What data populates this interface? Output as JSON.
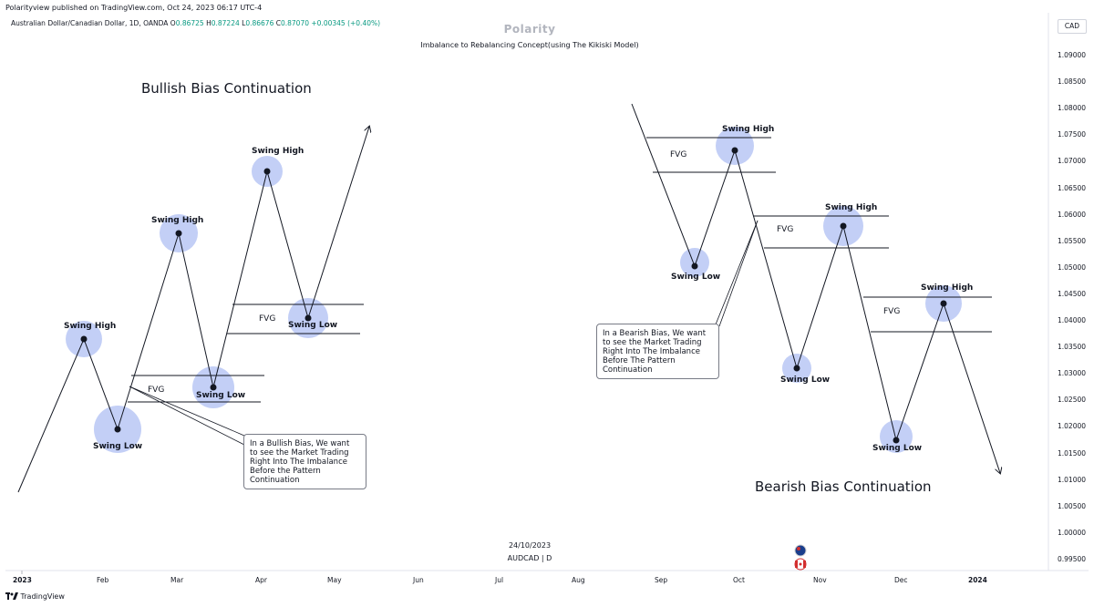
{
  "header": {
    "published": "Polarityview published on TradingView.com, Oct 24, 2023 06:17 UTC-4",
    "symbol_desc": "Australian Dollar/Canadian Dollar, 1D, OANDA",
    "ohlc": {
      "o_label": "O",
      "o": "0.86725",
      "h_label": "H",
      "h": "0.87224",
      "l_label": "L",
      "l": "0.86676",
      "c_label": "C",
      "c": "0.87070",
      "change": "+0.00345 (+0.40%)"
    },
    "brand": "Polarity",
    "subtitle": "Imbalance to Rebalancing Concept(using The Kikiski Model)",
    "currency": "CAD"
  },
  "price_axis": [
    "1.09000",
    "1.08500",
    "1.08000",
    "1.07500",
    "1.07000",
    "1.06500",
    "1.06000",
    "1.05500",
    "1.05000",
    "1.04500",
    "1.04000",
    "1.03500",
    "1.03000",
    "1.02500",
    "1.02000",
    "1.01500",
    "1.01000",
    "1.00500",
    "1.00000",
    "0.99500"
  ],
  "time_axis": [
    "2023",
    "Feb",
    "Mar",
    "Apr",
    "May",
    "Jun",
    "Jul",
    "Aug",
    "Sep",
    "Oct",
    "Nov",
    "Dec",
    "2024"
  ],
  "watermark": {
    "date": "24/10/2023",
    "symbol": "AUDCAD | D"
  },
  "footer": {
    "brand": "TradingView"
  },
  "bullish": {
    "title": "Bullish Bias Continuation",
    "labels": [
      "Swing High",
      "Swing Low",
      "Swing High",
      "Swing Low",
      "Swing High",
      "Swing Low",
      "FVG",
      "FVG"
    ],
    "note": [
      "In a Bullish Bias, We want",
      "to see the Market Trading",
      "Right Into The Imbalance",
      "Before the Pattern",
      "Continuation"
    ]
  },
  "bearish": {
    "title": "Bearish Bias Continuation",
    "labels": [
      "Swing High",
      "Swing Low",
      "Swing High",
      "Swing Low",
      "Swing High",
      "Swing Low",
      "FVG",
      "FVG",
      "FVG"
    ],
    "note": [
      "In a Bearish Bias, We want",
      "to see the Market Trading",
      "Right Into The Imbalance",
      "Before The Pattern",
      "Continuation"
    ]
  },
  "colors": {
    "circle": "#b8c7f5",
    "up": "#089981",
    "line": "#131722"
  }
}
